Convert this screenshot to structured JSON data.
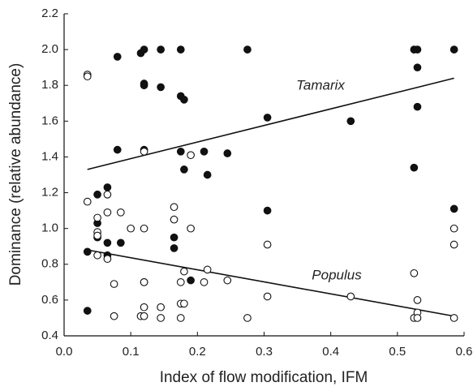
{
  "chart_data": {
    "type": "scatter",
    "x_label": "Index of flow modification, IFM",
    "y_label": "Dominance (relative abundance)",
    "xlim": [
      0,
      0.6
    ],
    "xticks": [
      {
        "value": 0,
        "label": "0.0"
      },
      0.1,
      0.2,
      0.3,
      0.4,
      0.5,
      0.6
    ],
    "ylim": [
      0.4,
      2.2
    ],
    "yticks": [
      0.4,
      0.6,
      0.8,
      {
        "value": 1,
        "label": "1.0"
      },
      1.2,
      1.4,
      1.6,
      1.8,
      {
        "value": 2,
        "label": "2.0"
      },
      2.2
    ],
    "series": [
      {
        "name": "Tamarix",
        "color": "#111111",
        "filled": true,
        "x": [
          0.035,
          0.035,
          0.05,
          0.05,
          0.05,
          0.065,
          0.065,
          0.065,
          0.08,
          0.08,
          0.085,
          0.115,
          0.12,
          0.12,
          0.12,
          0.12,
          0.12,
          0.145,
          0.145,
          0.165,
          0.165,
          0.175,
          0.175,
          0.18,
          0.175,
          0.18,
          0.19,
          0.21,
          0.215,
          0.245,
          0.275,
          0.305,
          0.305,
          0.43,
          0.525,
          0.53,
          0.53,
          0.53,
          0.525,
          0.585,
          0.585
        ],
        "values": [
          0.54,
          0.87,
          1.19,
          1.03,
          0.95,
          1.23,
          0.92,
          0.85,
          1.96,
          1.44,
          0.92,
          1.98,
          2.0,
          1.81,
          1.8,
          1.44,
          0.7,
          2.0,
          1.79,
          0.95,
          0.89,
          2.0,
          1.74,
          1.72,
          1.43,
          1.33,
          0.71,
          1.43,
          1.3,
          1.42,
          2.0,
          1.62,
          1.1,
          1.6,
          2.0,
          2.0,
          1.9,
          1.68,
          1.34,
          2.0,
          1.11
        ],
        "trend": {
          "x": [
            0.035,
            0.585
          ],
          "values": [
            1.33,
            1.84
          ]
        }
      },
      {
        "name": "Populus",
        "color": "#111111",
        "filled": false,
        "x": [
          0.035,
          0.035,
          0.035,
          0.05,
          0.05,
          0.05,
          0.05,
          0.065,
          0.065,
          0.065,
          0.075,
          0.075,
          0.085,
          0.1,
          0.115,
          0.12,
          0.12,
          0.12,
          0.12,
          0.12,
          0.145,
          0.145,
          0.165,
          0.165,
          0.175,
          0.175,
          0.175,
          0.18,
          0.18,
          0.19,
          0.19,
          0.21,
          0.215,
          0.245,
          0.275,
          0.305,
          0.305,
          0.43,
          0.525,
          0.525,
          0.53,
          0.53,
          0.53,
          0.585,
          0.585,
          0.585
        ],
        "values": [
          1.86,
          1.85,
          1.15,
          1.06,
          0.98,
          0.96,
          0.85,
          1.19,
          1.09,
          0.83,
          0.69,
          0.51,
          1.09,
          1.0,
          0.51,
          1.43,
          1.0,
          0.7,
          0.56,
          0.51,
          0.56,
          0.5,
          1.12,
          1.05,
          0.7,
          0.58,
          0.5,
          0.76,
          0.58,
          1.41,
          1.0,
          0.7,
          0.77,
          0.71,
          0.5,
          0.91,
          0.62,
          0.62,
          0.75,
          0.5,
          0.6,
          0.53,
          0.5,
          1.0,
          0.91,
          0.5
        ],
        "trend": {
          "x": [
            0.035,
            0.585
          ],
          "values": [
            0.88,
            0.51
          ]
        }
      }
    ]
  }
}
